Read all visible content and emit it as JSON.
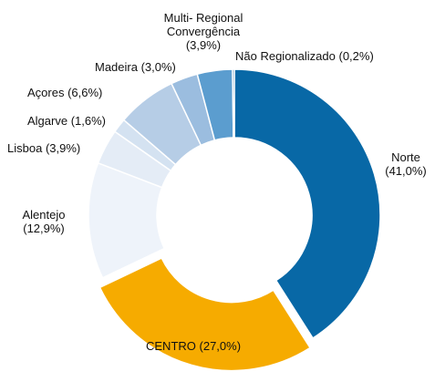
{
  "chart_data": {
    "type": "donut",
    "categories": [
      "Norte",
      "CENTRO",
      "Alentejo",
      "Lisboa",
      "Algarve",
      "Açores",
      "Madeira",
      "Multi- Regional Convergência",
      "Não Regionalizado"
    ],
    "values": [
      41.0,
      27.0,
      12.9,
      3.9,
      1.6,
      6.6,
      3.0,
      3.9,
      0.2
    ],
    "value_labels": [
      "(41,0%)",
      "(27,0%)",
      "(12,9%)",
      "(3,9%)",
      "(1,6%)",
      "(6,6%)",
      "(3,0%)",
      "(3,9%)",
      "(0,2%)"
    ],
    "colors": [
      "#0868a6",
      "#f6ab00",
      "#eef3fa",
      "#e4ecf6",
      "#d4e2f1",
      "#b6cde6",
      "#9bbddf",
      "#5b9dcf",
      "#2f6fa6"
    ],
    "exploded": [
      false,
      true,
      false,
      false,
      false,
      false,
      false,
      false,
      false
    ]
  }
}
